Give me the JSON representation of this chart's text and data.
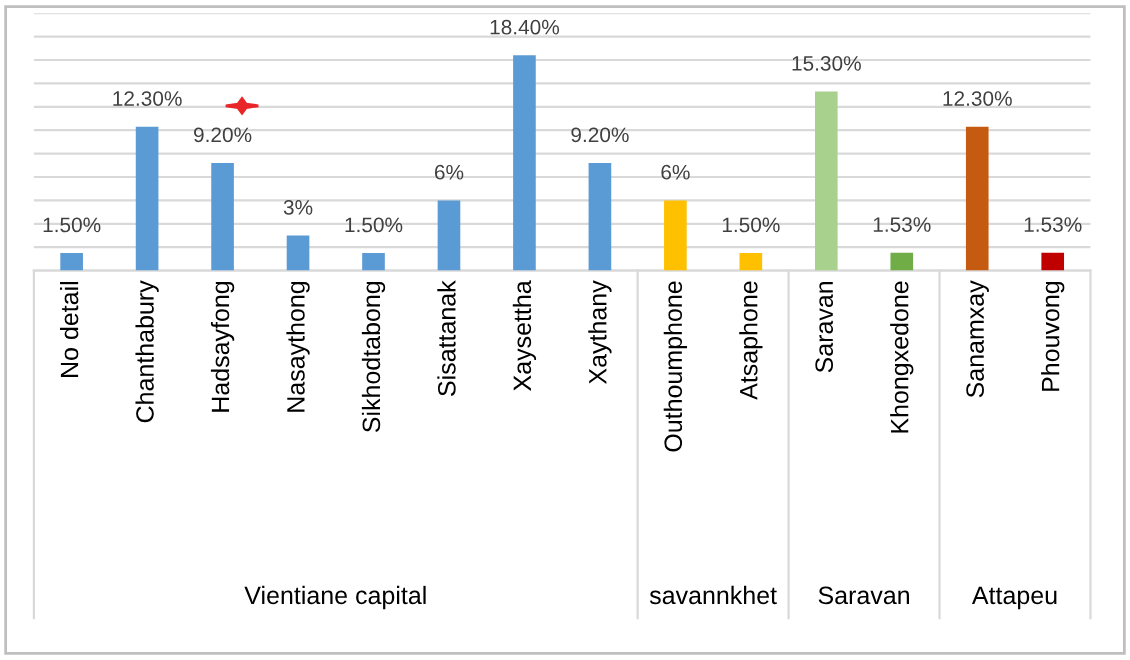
{
  "chart_data": {
    "type": "bar",
    "categories": [
      "No detail",
      "Chanthabury",
      "Hadsayfong",
      "Nasaythong",
      "Sikhodtabong",
      "Sisattanak",
      "Xaysettha",
      "Xaythany",
      "Outhoumphone",
      "Atsaphone",
      "Saravan",
      "Khongxedone",
      "Sanamxay",
      "Phouvong"
    ],
    "values": [
      1.5,
      12.3,
      9.2,
      3,
      1.5,
      6,
      18.4,
      9.2,
      6,
      1.5,
      15.3,
      1.53,
      12.3,
      1.53
    ],
    "value_labels": [
      "1.50%",
      "12.30%",
      "9.20%",
      "3%",
      "1.50%",
      "6%",
      "18.40%",
      "9.20%",
      "6%",
      "1.50%",
      "15.30%",
      "1.53%",
      "12.30%",
      "1.53%"
    ],
    "colors": [
      "#5b9bd5",
      "#5b9bd5",
      "#5b9bd5",
      "#5b9bd5",
      "#5b9bd5",
      "#5b9bd5",
      "#5b9bd5",
      "#5b9bd5",
      "#ffc000",
      "#ffc000",
      "#a9d18e",
      "#70ad47",
      "#c55a11",
      "#c00000"
    ],
    "annotations": [
      "Vientiane capital",
      "savannkhet",
      "Saravan",
      "Attapeu"
    ],
    "ylim": [
      0,
      22
    ],
    "yticks": [
      {
        "value": 0,
        "label": null
      },
      {
        "value": 2,
        "label": null
      },
      {
        "value": 4,
        "label": null
      },
      {
        "value": 6,
        "label": null
      },
      {
        "value": 8,
        "label": null
      },
      {
        "value": 10,
        "label": null
      },
      {
        "value": 12,
        "label": null
      },
      {
        "value": 14,
        "label": null
      },
      {
        "value": 16,
        "label": null
      },
      {
        "value": 18,
        "label": null
      },
      {
        "value": 20,
        "label": null
      },
      {
        "value": 22,
        "label": null
      }
    ],
    "tick_labels": "x",
    "grid": "y"
  }
}
